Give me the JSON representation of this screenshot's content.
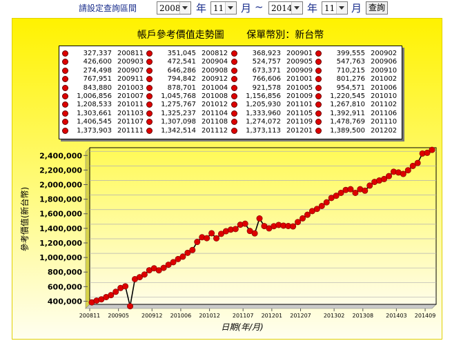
{
  "toolbar": {
    "label": "請設定查詢區間",
    "start_year": "2008",
    "start_month": "11",
    "end_year": "2014",
    "end_month": "11",
    "year_char": "年",
    "month_char": "月",
    "tilde": "~",
    "query_button": "查詢"
  },
  "chart_title": {
    "main": "帳戶參考價值走勢圖",
    "currency": "保單幣別：新台幣"
  },
  "colors": {
    "marker": "#dd0000",
    "line": "#000000",
    "panel_top": "#fff200",
    "plot_bg_top": "#fffc5a"
  },
  "chart_data": {
    "type": "line",
    "xlabel": "日期(年/月)",
    "ylabel": "參考價值(新台幣)",
    "ylim": [
      300000,
      2450000
    ],
    "yticks": [
      400000,
      600000,
      800000,
      1000000,
      1200000,
      1400000,
      1600000,
      1800000,
      2000000,
      2200000,
      2400000
    ],
    "ytick_labels": [
      "400,000",
      "600,000",
      "800,000",
      "1,000,000",
      "1,200,000",
      "1,400,000",
      "1,600,000",
      "1,800,000",
      "2,000,000",
      "2,200,000",
      "2,400,000"
    ],
    "xtick_labels": [
      "200811",
      "200905",
      "200912",
      "201006",
      "201012",
      "201107",
      "201201",
      "201207",
      "201302",
      "201308",
      "201403",
      "201409"
    ],
    "xtick_index": [
      0,
      6,
      13,
      19,
      25,
      32,
      38,
      44,
      51,
      57,
      64,
      70
    ],
    "legend_rows": [
      [
        [
          "327,337",
          "200811"
        ],
        [
          "351,045",
          "200812"
        ],
        [
          "368,923",
          "200901"
        ],
        [
          "399,555",
          "200902"
        ]
      ],
      [
        [
          "426,600",
          "200903"
        ],
        [
          "472,541",
          "200904"
        ],
        [
          "524,757",
          "200905"
        ],
        [
          "547,763",
          "200906"
        ]
      ],
      [
        [
          "274,498",
          "200907"
        ],
        [
          "646,286",
          "200908"
        ],
        [
          "673,371",
          "200909"
        ],
        [
          "710,215",
          "200910"
        ]
      ],
      [
        [
          "767,951",
          "200911"
        ],
        [
          "794,842",
          "200912"
        ],
        [
          "766,606",
          "201001"
        ],
        [
          "801,276",
          "201002"
        ]
      ],
      [
        [
          "843,880",
          "201003"
        ],
        [
          "878,701",
          "201004"
        ],
        [
          "921,578",
          "201005"
        ],
        [
          "954,571",
          "201006"
        ]
      ],
      [
        [
          "1,006,856",
          "201007"
        ],
        [
          "1,045,768",
          "201008"
        ],
        [
          "1,156,856",
          "201009"
        ],
        [
          "1,220,545",
          "201010"
        ]
      ],
      [
        [
          "1,208,533",
          "201011"
        ],
        [
          "1,275,767",
          "201012"
        ],
        [
          "1,205,930",
          "201101"
        ],
        [
          "1,267,810",
          "201102"
        ]
      ],
      [
        [
          "1,303,661",
          "201103"
        ],
        [
          "1,325,237",
          "201104"
        ],
        [
          "1,333,960",
          "201105"
        ],
        [
          "1,392,911",
          "201106"
        ]
      ],
      [
        [
          "1,406,545",
          "201107"
        ],
        [
          "1,307,098",
          "201108"
        ],
        [
          "1,274,072",
          "201109"
        ],
        [
          "1,478,769",
          "201110"
        ]
      ],
      [
        [
          "1,373,903",
          "201111"
        ],
        [
          "1,342,514",
          "201112"
        ],
        [
          "1,373,113",
          "201201"
        ],
        [
          "1,389,500",
          "201202"
        ]
      ]
    ],
    "values": [
      327337,
      351045,
      368923,
      399555,
      426600,
      472541,
      524757,
      547763,
      274498,
      646286,
      673371,
      710215,
      767951,
      794842,
      766606,
      801276,
      843880,
      878701,
      921578,
      954571,
      1006856,
      1045768,
      1156856,
      1220545,
      1208533,
      1275767,
      1205930,
      1267810,
      1303661,
      1325237,
      1333960,
      1392911,
      1406545,
      1307098,
      1274072,
      1478769,
      1373903,
      1342514,
      1373113,
      1389500,
      1380000,
      1375000,
      1370000,
      1430000,
      1480000,
      1530000,
      1580000,
      1610000,
      1650000,
      1700000,
      1760000,
      1790000,
      1830000,
      1870000,
      1880000,
      1830000,
      1880000,
      1860000,
      1930000,
      1980000,
      2000000,
      2020000,
      2060000,
      2120000,
      2110000,
      2090000,
      2140000,
      2200000,
      2240000,
      2370000,
      2380000,
      2420000
    ]
  }
}
